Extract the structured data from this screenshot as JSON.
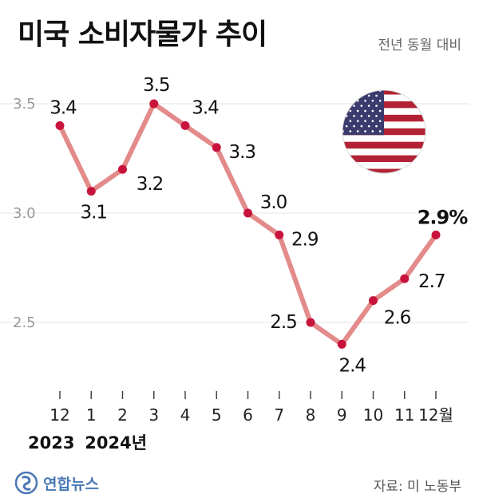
{
  "header": {
    "title": "미국 소비자물가 추이",
    "subtitle": "전년 동월 대비"
  },
  "footer": {
    "logo_text": "연합뉴스",
    "source": "자료: 미 노동부"
  },
  "icons": {
    "flag": "us-flag-icon",
    "logo": "yonhap-logo-icon"
  },
  "colors": {
    "line": "#e38a8a",
    "marker": "#c8143c",
    "grid": "#e5e5e5",
    "axis_text": "#999999"
  },
  "chart_data": {
    "type": "line",
    "categories": [
      "12",
      "1",
      "2",
      "3",
      "4",
      "5",
      "6",
      "7",
      "8",
      "9",
      "10",
      "11",
      "12월"
    ],
    "year_labels": [
      {
        "category_index": 0,
        "label": "2023"
      },
      {
        "category_index": 1,
        "label": "2024년"
      }
    ],
    "series": [
      {
        "values": [
          3.4,
          3.1,
          3.2,
          3.5,
          3.4,
          3.3,
          3.0,
          2.9,
          2.5,
          2.4,
          2.6,
          2.7,
          2.9
        ],
        "labels": [
          "3.4",
          "3.1",
          "3.2",
          "3.5",
          "3.4",
          "3.3",
          "3.0",
          "2.9",
          "2.5",
          "2.4",
          "2.6",
          "2.7",
          "2.9%"
        ]
      }
    ],
    "yticks": [
      "2.5",
      "3.0",
      "3.5"
    ],
    "ytick_values": [
      2.5,
      3.0,
      3.5
    ],
    "ylim": [
      2.2,
      3.6
    ],
    "grid": true,
    "legend": "none"
  }
}
